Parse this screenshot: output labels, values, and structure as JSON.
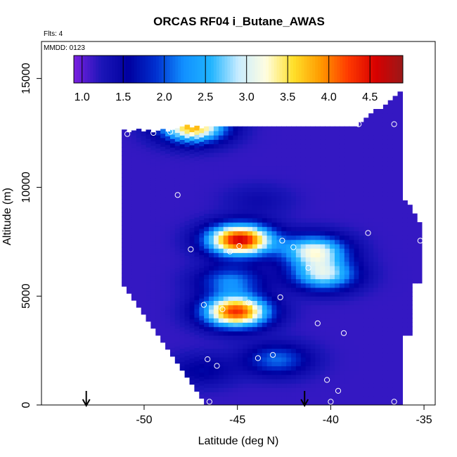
{
  "chart_data": {
    "type": "heatmap",
    "title": "ORCAS RF04 i_Butane_AWAS",
    "flights_label": "Flts: 4",
    "date_label": "MMDD: 0123",
    "xlabel": "Latitude (deg N)",
    "ylabel": "Altitude (m)",
    "xlim": [
      -55.5,
      -34.4
    ],
    "ylim": [
      0,
      16700
    ],
    "x_ticks": [
      -50,
      -45,
      -40,
      -35
    ],
    "x_tick_labels": [
      "-50",
      "-45",
      "-40",
      "-35"
    ],
    "y_ticks": [
      0,
      5000,
      10000,
      15000
    ],
    "y_tick_labels": [
      "0",
      "5000",
      "10000",
      "15000"
    ],
    "colorbar": {
      "range": [
        0.9,
        4.9
      ],
      "ticks": [
        1.0,
        1.5,
        2.0,
        2.5,
        3.0,
        3.5,
        4.0,
        4.5
      ],
      "tick_labels": [
        "1.0",
        "1.5",
        "2.0",
        "2.5",
        "3.0",
        "3.5",
        "4.0",
        "4.5"
      ],
      "placement": "top inside plot"
    },
    "colors": {
      "colorbar_stops": [
        "#7b1fe0",
        "#1c16b8",
        "#0000a0",
        "#0030d0",
        "#1190ff",
        "#20b4ff",
        "#c8ecff",
        "#fffde0",
        "#ffe02a",
        "#ff9a00",
        "#ff3a00",
        "#d80000",
        "#9a1818"
      ],
      "background_field": "#0018c8",
      "markers": "#ffffff",
      "arrows": "#000000"
    },
    "field_hotspots": [
      {
        "lat": -45.0,
        "alt": 7500,
        "value": 4.6
      },
      {
        "lat": -45.2,
        "alt": 4200,
        "value": 4.3
      },
      {
        "lat": -47.5,
        "alt": 12700,
        "value": 3.8
      },
      {
        "lat": -40.5,
        "alt": 5900,
        "value": 2.9
      },
      {
        "lat": -41.0,
        "alt": 7000,
        "value": 3.1
      },
      {
        "lat": -45.5,
        "alt": 5600,
        "value": 2.2
      },
      {
        "lat": -44.0,
        "alt": 9300,
        "value": 1.4
      },
      {
        "lat": -47.0,
        "alt": 1500,
        "value": 1.6
      },
      {
        "lat": -43.0,
        "alt": 2000,
        "value": 2.1
      }
    ],
    "sample_points": [
      {
        "lat": -50.9,
        "alt": 12450
      },
      {
        "lat": -49.5,
        "alt": 12500
      },
      {
        "lat": -48.6,
        "alt": 12550
      },
      {
        "lat": -38.5,
        "alt": 12900
      },
      {
        "lat": -36.6,
        "alt": 12900
      },
      {
        "lat": -35.9,
        "alt": 12900
      },
      {
        "lat": -48.2,
        "alt": 9650
      },
      {
        "lat": -47.5,
        "alt": 7150
      },
      {
        "lat": -45.4,
        "alt": 7050
      },
      {
        "lat": -44.9,
        "alt": 7300
      },
      {
        "lat": -42.6,
        "alt": 7550
      },
      {
        "lat": -42.0,
        "alt": 7250
      },
      {
        "lat": -41.2,
        "alt": 6300
      },
      {
        "lat": -38.0,
        "alt": 7900
      },
      {
        "lat": -35.2,
        "alt": 7550
      },
      {
        "lat": -34.6,
        "alt": 7850
      },
      {
        "lat": -46.8,
        "alt": 4600
      },
      {
        "lat": -45.8,
        "alt": 4400
      },
      {
        "lat": -44.4,
        "alt": 4700
      },
      {
        "lat": -42.7,
        "alt": 4950
      },
      {
        "lat": -40.7,
        "alt": 3750
      },
      {
        "lat": -39.3,
        "alt": 3300
      },
      {
        "lat": -46.6,
        "alt": 2100
      },
      {
        "lat": -46.1,
        "alt": 1800
      },
      {
        "lat": -43.9,
        "alt": 2150
      },
      {
        "lat": -43.1,
        "alt": 2300
      },
      {
        "lat": -40.2,
        "alt": 1150
      },
      {
        "lat": -39.6,
        "alt": 650
      },
      {
        "lat": -40.0,
        "alt": 150
      },
      {
        "lat": -46.5,
        "alt": 150
      },
      {
        "lat": -36.6,
        "alt": 150
      }
    ],
    "arrows_at_lat": [
      -53.1,
      -41.4
    ],
    "grid": false
  }
}
